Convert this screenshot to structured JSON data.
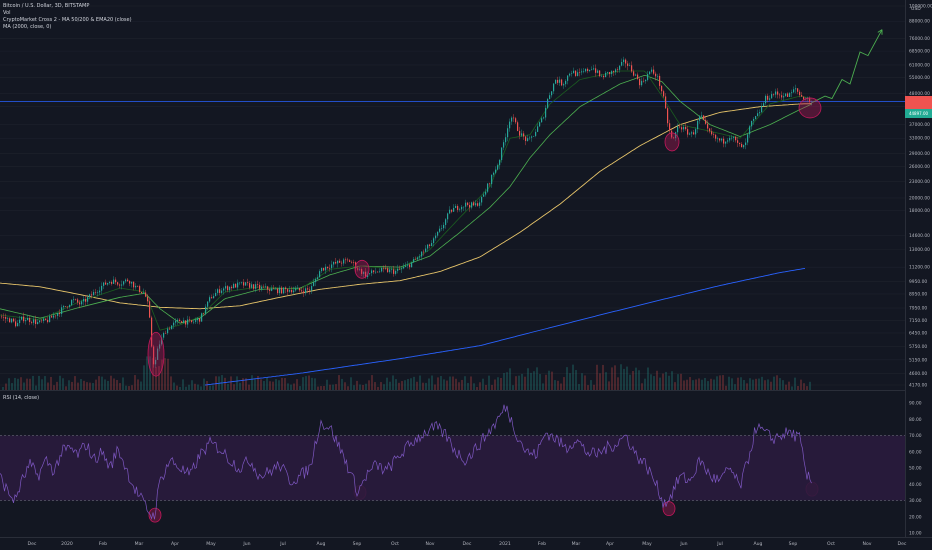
{
  "header": {
    "symbol_line": "Bitcoin / U.S. Dollar, 3D, BITSTAMP",
    "volume_label": "Vol",
    "indicator_1": "CryptoMarket Cross 2 - MA 50/200 & EMA20 (close)",
    "indicator_2": "MA (2000, close, 0)",
    "currency": "USD"
  },
  "rsi_panel": {
    "title": "RSI (14, close)"
  },
  "colors": {
    "background": "#131722",
    "candle_up": "#26a69a",
    "candle_down": "#ef5350",
    "ma50": "#4caf50",
    "ema20": "#1b5e20",
    "ma200": "#e6c46a",
    "ma2000": "#2962ff",
    "rsi": "#7e57c2",
    "rsi_band": "#2a1b3d",
    "highlight": "#c2185b",
    "projection": "#4caf50",
    "horizontal_line": "#2962ff"
  },
  "price_axis": [
    "100000.00",
    "88000.00",
    "76000.00",
    "68500.00",
    "61000.00",
    "55000.00",
    "48000.00",
    "43000.00",
    "37000.00",
    "33000.00",
    "29000.00",
    "26000.00",
    "23000.00",
    "20000.00",
    "18000.00",
    "14600.00",
    "13000.00",
    "11200.00",
    "9950.00",
    "8950.00",
    "7950.00",
    "7150.00",
    "6450.00",
    "5750.00",
    "5150.00",
    "4600.00",
    "4170.00"
  ],
  "price_tag_2": "44897.00",
  "rsi_axis": [
    "90.00",
    "80.00",
    "70.00",
    "60.00",
    "50.00",
    "40.00",
    "30.00",
    "20.00",
    "10.00"
  ],
  "time_axis": [
    "Dec",
    "2020",
    "Feb",
    "Mar",
    "Apr",
    "May",
    "Jun",
    "Jul",
    "Aug",
    "Sep",
    "Oct",
    "Nov",
    "Dec",
    "2021",
    "Feb",
    "Mar",
    "Apr",
    "May",
    "Jun",
    "Jul",
    "Aug",
    "Sep",
    "Oct",
    "Nov",
    "Dec"
  ],
  "chart_data": {
    "type": "line",
    "title": "Bitcoin / U.S. Dollar, 3D, BITSTAMP",
    "scale": "log",
    "ylim": [
      4170,
      100000
    ],
    "price_anchors": [
      [
        0,
        7400
      ],
      [
        6,
        7250
      ],
      [
        10,
        7200
      ],
      [
        16,
        6900
      ],
      [
        22,
        7300
      ],
      [
        30,
        7200
      ],
      [
        38,
        7000
      ],
      [
        48,
        7200
      ],
      [
        56,
        7600
      ],
      [
        64,
        8000
      ],
      [
        72,
        8500
      ],
      [
        80,
        8200
      ],
      [
        90,
        8800
      ],
      [
        100,
        9500
      ],
      [
        110,
        10000
      ],
      [
        120,
        9800
      ],
      [
        128,
        10100
      ],
      [
        136,
        9400
      ],
      [
        144,
        9000
      ],
      [
        148,
        8000
      ],
      [
        152,
        5200
      ],
      [
        154,
        4900
      ],
      [
        158,
        5800
      ],
      [
        165,
        6600
      ],
      [
        172,
        6900
      ],
      [
        180,
        7200
      ],
      [
        190,
        7000
      ],
      [
        200,
        7300
      ],
      [
        210,
        8700
      ],
      [
        220,
        9300
      ],
      [
        230,
        9500
      ],
      [
        240,
        9700
      ],
      [
        250,
        9600
      ],
      [
        260,
        9400
      ],
      [
        270,
        9300
      ],
      [
        280,
        9200
      ],
      [
        290,
        9300
      ],
      [
        300,
        9200
      ],
      [
        310,
        9300
      ],
      [
        320,
        11000
      ],
      [
        330,
        11400
      ],
      [
        340,
        11700
      ],
      [
        350,
        11800
      ],
      [
        358,
        11000
      ],
      [
        365,
        10500
      ],
      [
        375,
        10800
      ],
      [
        385,
        10900
      ],
      [
        395,
        10800
      ],
      [
        405,
        11200
      ],
      [
        415,
        11900
      ],
      [
        425,
        13000
      ],
      [
        432,
        13800
      ],
      [
        440,
        15400
      ],
      [
        450,
        18000
      ],
      [
        458,
        18600
      ],
      [
        466,
        19000
      ],
      [
        474,
        18700
      ],
      [
        482,
        20000
      ],
      [
        490,
        23500
      ],
      [
        498,
        27000
      ],
      [
        505,
        34000
      ],
      [
        510,
        40000
      ],
      [
        515,
        37000
      ],
      [
        520,
        34000
      ],
      [
        528,
        32000
      ],
      [
        535,
        35000
      ],
      [
        542,
        39000
      ],
      [
        548,
        47000
      ],
      [
        555,
        54000
      ],
      [
        562,
        52000
      ],
      [
        570,
        58000
      ],
      [
        578,
        56000
      ],
      [
        585,
        58000
      ],
      [
        592,
        60000
      ],
      [
        600,
        55000
      ],
      [
        608,
        57000
      ],
      [
        616,
        58000
      ],
      [
        624,
        63000
      ],
      [
        632,
        58000
      ],
      [
        640,
        52000
      ],
      [
        650,
        58000
      ],
      [
        656,
        56000
      ],
      [
        662,
        48000
      ],
      [
        668,
        36000
      ],
      [
        672,
        32000
      ],
      [
        678,
        37000
      ],
      [
        685,
        35000
      ],
      [
        692,
        34000
      ],
      [
        700,
        40000
      ],
      [
        707,
        35000
      ],
      [
        714,
        33000
      ],
      [
        722,
        32000
      ],
      [
        730,
        34000
      ],
      [
        738,
        31000
      ],
      [
        744,
        30500
      ],
      [
        750,
        37000
      ],
      [
        757,
        40000
      ],
      [
        765,
        46000
      ],
      [
        773,
        48000
      ],
      [
        780,
        47500
      ],
      [
        788,
        47000
      ],
      [
        795,
        50000
      ],
      [
        800,
        47000
      ],
      [
        806,
        46000
      ],
      [
        812,
        44500
      ]
    ],
    "ma_anchors": {
      "ma50": [
        [
          0,
          7900
        ],
        [
          40,
          7300
        ],
        [
          80,
          8000
        ],
        [
          120,
          8700
        ],
        [
          145,
          9000
        ],
        [
          160,
          7900
        ],
        [
          180,
          7000
        ],
        [
          200,
          7300
        ],
        [
          225,
          8600
        ],
        [
          260,
          9300
        ],
        [
          300,
          9400
        ],
        [
          330,
          10500
        ],
        [
          360,
          11300
        ],
        [
          400,
          11200
        ],
        [
          430,
          12300
        ],
        [
          460,
          15000
        ],
        [
          490,
          18500
        ],
        [
          510,
          22000
        ],
        [
          530,
          28000
        ],
        [
          550,
          34000
        ],
        [
          580,
          43000
        ],
        [
          620,
          52000
        ],
        [
          645,
          56000
        ],
        [
          662,
          53000
        ],
        [
          680,
          45000
        ],
        [
          710,
          37000
        ],
        [
          740,
          33500
        ],
        [
          770,
          37000
        ],
        [
          800,
          42000
        ],
        [
          812,
          44000
        ]
      ],
      "ema20": [
        [
          0,
          7500
        ],
        [
          40,
          7200
        ],
        [
          80,
          8400
        ],
        [
          120,
          9400
        ],
        [
          145,
          9100
        ],
        [
          160,
          6600
        ],
        [
          180,
          6900
        ],
        [
          200,
          7400
        ],
        [
          225,
          9100
        ],
        [
          260,
          9500
        ],
        [
          300,
          9300
        ],
        [
          330,
          11000
        ],
        [
          360,
          11300
        ],
        [
          400,
          11000
        ],
        [
          430,
          13000
        ],
        [
          460,
          17000
        ],
        [
          490,
          22000
        ],
        [
          510,
          33000
        ],
        [
          530,
          34000
        ],
        [
          550,
          44000
        ],
        [
          580,
          54000
        ],
        [
          620,
          58000
        ],
        [
          645,
          58000
        ],
        [
          662,
          47000
        ],
        [
          680,
          37000
        ],
        [
          710,
          35000
        ],
        [
          740,
          33000
        ],
        [
          770,
          44000
        ],
        [
          800,
          47000
        ],
        [
          812,
          46000
        ]
      ],
      "ma200": [
        [
          0,
          9800
        ],
        [
          40,
          9500
        ],
        [
          80,
          8900
        ],
        [
          120,
          8300
        ],
        [
          160,
          8000
        ],
        [
          200,
          7900
        ],
        [
          240,
          8100
        ],
        [
          280,
          8700
        ],
        [
          320,
          9300
        ],
        [
          360,
          9700
        ],
        [
          400,
          10000
        ],
        [
          440,
          10800
        ],
        [
          480,
          12200
        ],
        [
          520,
          15000
        ],
        [
          560,
          19000
        ],
        [
          600,
          25000
        ],
        [
          640,
          31000
        ],
        [
          680,
          37000
        ],
        [
          720,
          41000
        ],
        [
          760,
          43000
        ],
        [
          800,
          44000
        ],
        [
          812,
          44100
        ]
      ],
      "ma2000": [
        [
          205,
          4170
        ],
        [
          300,
          4600
        ],
        [
          400,
          5200
        ],
        [
          480,
          5800
        ],
        [
          540,
          6600
        ],
        [
          600,
          7500
        ],
        [
          660,
          8500
        ],
        [
          720,
          9600
        ],
        [
          780,
          10700
        ],
        [
          806,
          11100
        ]
      ]
    },
    "projection": [
      [
        812,
        44500
      ],
      [
        825,
        47000
      ],
      [
        832,
        46000
      ],
      [
        842,
        54000
      ],
      [
        850,
        52000
      ],
      [
        860,
        68000
      ],
      [
        868,
        66000
      ],
      [
        882,
        82000
      ]
    ],
    "horizontal_line_price": 44897,
    "rsi_range": [
      10,
      90
    ],
    "rsi_levels": [
      70,
      30
    ],
    "rsi_anchors": [
      [
        0,
        45
      ],
      [
        8,
        35
      ],
      [
        15,
        30
      ],
      [
        22,
        42
      ],
      [
        30,
        52
      ],
      [
        38,
        45
      ],
      [
        46,
        55
      ],
      [
        54,
        48
      ],
      [
        62,
        60
      ],
      [
        70,
        62
      ],
      [
        78,
        58
      ],
      [
        86,
        65
      ],
      [
        94,
        55
      ],
      [
        102,
        60
      ],
      [
        110,
        50
      ],
      [
        118,
        62
      ],
      [
        126,
        50
      ],
      [
        134,
        38
      ],
      [
        142,
        30
      ],
      [
        150,
        22
      ],
      [
        154,
        20
      ],
      [
        160,
        42
      ],
      [
        170,
        55
      ],
      [
        180,
        50
      ],
      [
        190,
        45
      ],
      [
        200,
        58
      ],
      [
        210,
        65
      ],
      [
        220,
        62
      ],
      [
        230,
        55
      ],
      [
        240,
        50
      ],
      [
        250,
        55
      ],
      [
        260,
        45
      ],
      [
        270,
        48
      ],
      [
        280,
        52
      ],
      [
        290,
        42
      ],
      [
        300,
        45
      ],
      [
        310,
        50
      ],
      [
        320,
        78
      ],
      [
        330,
        75
      ],
      [
        340,
        62
      ],
      [
        350,
        48
      ],
      [
        358,
        35
      ],
      [
        366,
        45
      ],
      [
        376,
        52
      ],
      [
        386,
        48
      ],
      [
        396,
        55
      ],
      [
        406,
        62
      ],
      [
        416,
        68
      ],
      [
        426,
        72
      ],
      [
        436,
        75
      ],
      [
        446,
        70
      ],
      [
        456,
        60
      ],
      [
        466,
        55
      ],
      [
        476,
        62
      ],
      [
        486,
        70
      ],
      [
        496,
        78
      ],
      [
        506,
        88
      ],
      [
        516,
        72
      ],
      [
        526,
        60
      ],
      [
        536,
        58
      ],
      [
        546,
        72
      ],
      [
        556,
        68
      ],
      [
        566,
        62
      ],
      [
        576,
        68
      ],
      [
        586,
        60
      ],
      [
        596,
        58
      ],
      [
        606,
        62
      ],
      [
        616,
        65
      ],
      [
        626,
        70
      ],
      [
        636,
        58
      ],
      [
        646,
        52
      ],
      [
        656,
        40
      ],
      [
        664,
        28
      ],
      [
        670,
        32
      ],
      [
        680,
        45
      ],
      [
        690,
        42
      ],
      [
        700,
        55
      ],
      [
        710,
        45
      ],
      [
        720,
        42
      ],
      [
        730,
        50
      ],
      [
        740,
        38
      ],
      [
        748,
        55
      ],
      [
        756,
        75
      ],
      [
        764,
        72
      ],
      [
        772,
        68
      ],
      [
        780,
        70
      ],
      [
        790,
        72
      ],
      [
        800,
        68
      ],
      [
        806,
        45
      ],
      [
        812,
        42
      ]
    ],
    "highlights": [
      {
        "x": 156,
        "y": 4800,
        "panel": "price"
      },
      {
        "x": 362,
        "y": 11000,
        "panel": "price"
      },
      {
        "x": 672,
        "y": 32000,
        "panel": "price"
      },
      {
        "x": 810,
        "y": 44000,
        "panel": "price"
      },
      {
        "x": 155,
        "y": 21,
        "panel": "rsi"
      },
      {
        "x": 360,
        "y": 35,
        "panel": "rsi"
      },
      {
        "x": 669,
        "y": 25,
        "panel": "rsi"
      },
      {
        "x": 812,
        "y": 37,
        "panel": "rsi"
      }
    ]
  }
}
